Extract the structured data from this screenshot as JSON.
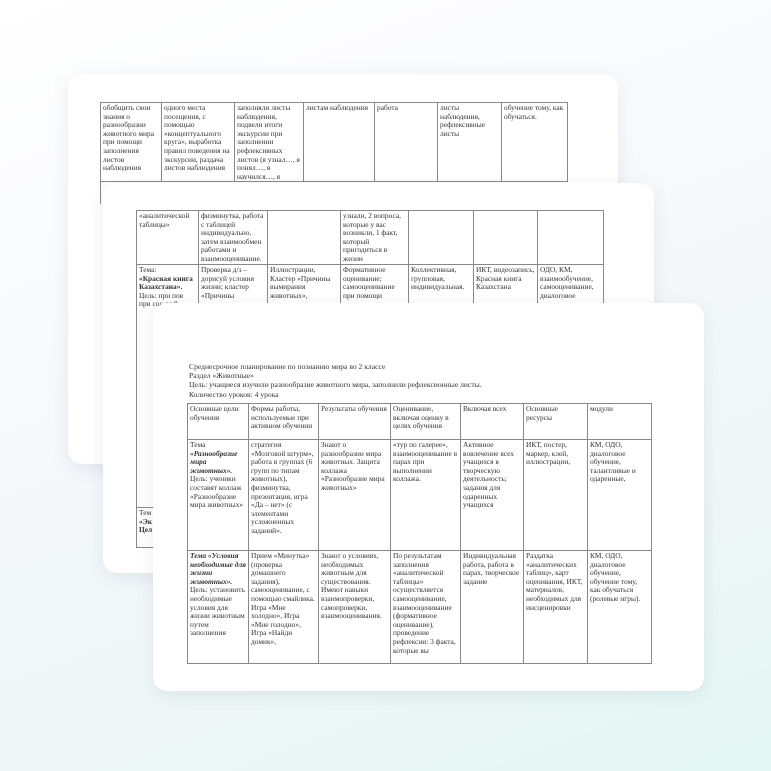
{
  "back_card": {
    "row1": [
      "обобщить свои знания о разнообразии животного мира при помощи заполнения листов наблюдения",
      "одного места посещения, с помощью «концептуального круга», выработка правил поведения на экскурсии, раздача листов наблюдения",
      "заполняли листы наблюдения, подвели итоги экскурсии при заполнении рефлексивных листов (я узнал…, я понял…, я научился…, я",
      "листам наблюдения",
      "работа",
      "листы наблюдения, рефлексивные листы",
      "обучение тому, как обучаться."
    ]
  },
  "middle_card": {
    "row1": [
      "«аналитической таблицы»",
      "физминутка, работа с таблицей индивидуально, затем взаимообмен работами и взаимооценивание.",
      "",
      "узнали, 2 вопроса, которые у вас возникли, 1 факт, который пригодиться в жизни",
      "",
      "",
      ""
    ],
    "row2_topic_prefix": "Тема: ",
    "row2_topic": "«Красная книга Казахстана».",
    "row2_col1_rest": "Цель: при пов при сос до 8",
    "row2": [
      "",
      "Проверка д/з – дорисуй условия жизни; кластер «Причины",
      " Иллюстрации, Кластер «Причины вымирания животных»,",
      "Формативное оценивание; самооценивание при помощи",
      "Коллективная, групповая, индивидуальная.",
      "ИКТ, видеозапись, Красная книга Казахстана",
      "ОДО, КМ, взаимообучение, самооценивание, диалоговое"
    ],
    "row3_col1_prefix": "Тем",
    "row3_col1_bold": "«Эк",
    "row3_col1_rest": "Цел"
  },
  "front_card": {
    "heading": [
      "Среднесрочное планирование по познанию мира во 2 классе",
      "Раздел «Животные»",
      "Цель: учащиеся изучили  разнообразие животного мира, заполнили рефлексионные листы.",
      "Количество уроков: 4 урока"
    ],
    "columns": [
      "Основные цели обучения",
      "Формы работы, используемые при активном обучении",
      "Результаты обучения",
      "Оценивание, включая оценку в целях обучения",
      "Включая всех",
      "Основные ресурсы",
      "модули"
    ],
    "row1_topic_prefix": "Тема ",
    "row1_topic": "«Разнообразие мира животных».",
    "row1_goal": "Цель: ученики составят коллаж «Разнообразие мира животных»",
    "row1": [
      "",
      "стратегия «Мозговой штурм», работа в группах (6 групп по типам животных), физминутка, презентация, игра «Да – нет» (с элементами усложненных заданий».",
      "Знают о разнообразии мира животных. Защита коллажа «Разнообразие мира  животных»",
      "«тур по галерее», взаимооценивание в парах при выполнении коллажа.",
      "Активное вовлечение всех учащихся в творческую деятельность; задания для одаренных учащихся",
      "ИКТ, постер, маркер, клей, иллюстрации,",
      "КМ, ОДО, диалоговое обучение, талантливые и одаренные,"
    ],
    "row2_topic": "Тема «Условия необходимые для жизни животных».",
    "row2_goal": "Цель: установить необходимые условия для жизни животным путем заполнения",
    "row2": [
      "",
      "Прием «Минутка» (проверка домашнего задания), самооценивание, с помощью смайлика. Игра «Мне холодно», Игра «Мне голодно», Игра «Найди домик»,",
      "Знают о условиях, необходимых животным  для существования. Имеют навыки взаимопроверки, самопроверки, взаимооценивания.",
      "По результатам заполнения «аналитической таблицы» осуществляется самооценивание, взаимооценивание (формативное оценивание), проведение рефлексии: 3 факта, которые вы",
      "Индивидуальная работа, работа в парах, творческое задание",
      "Раздатка «аналитических таблиц», карт оценивания, ИКТ, материалов, необходимых для инсценировки",
      "КМ, ОДО, диалоговое обучение, обучение тому, как обучаться (ролевые игры)."
    ]
  }
}
